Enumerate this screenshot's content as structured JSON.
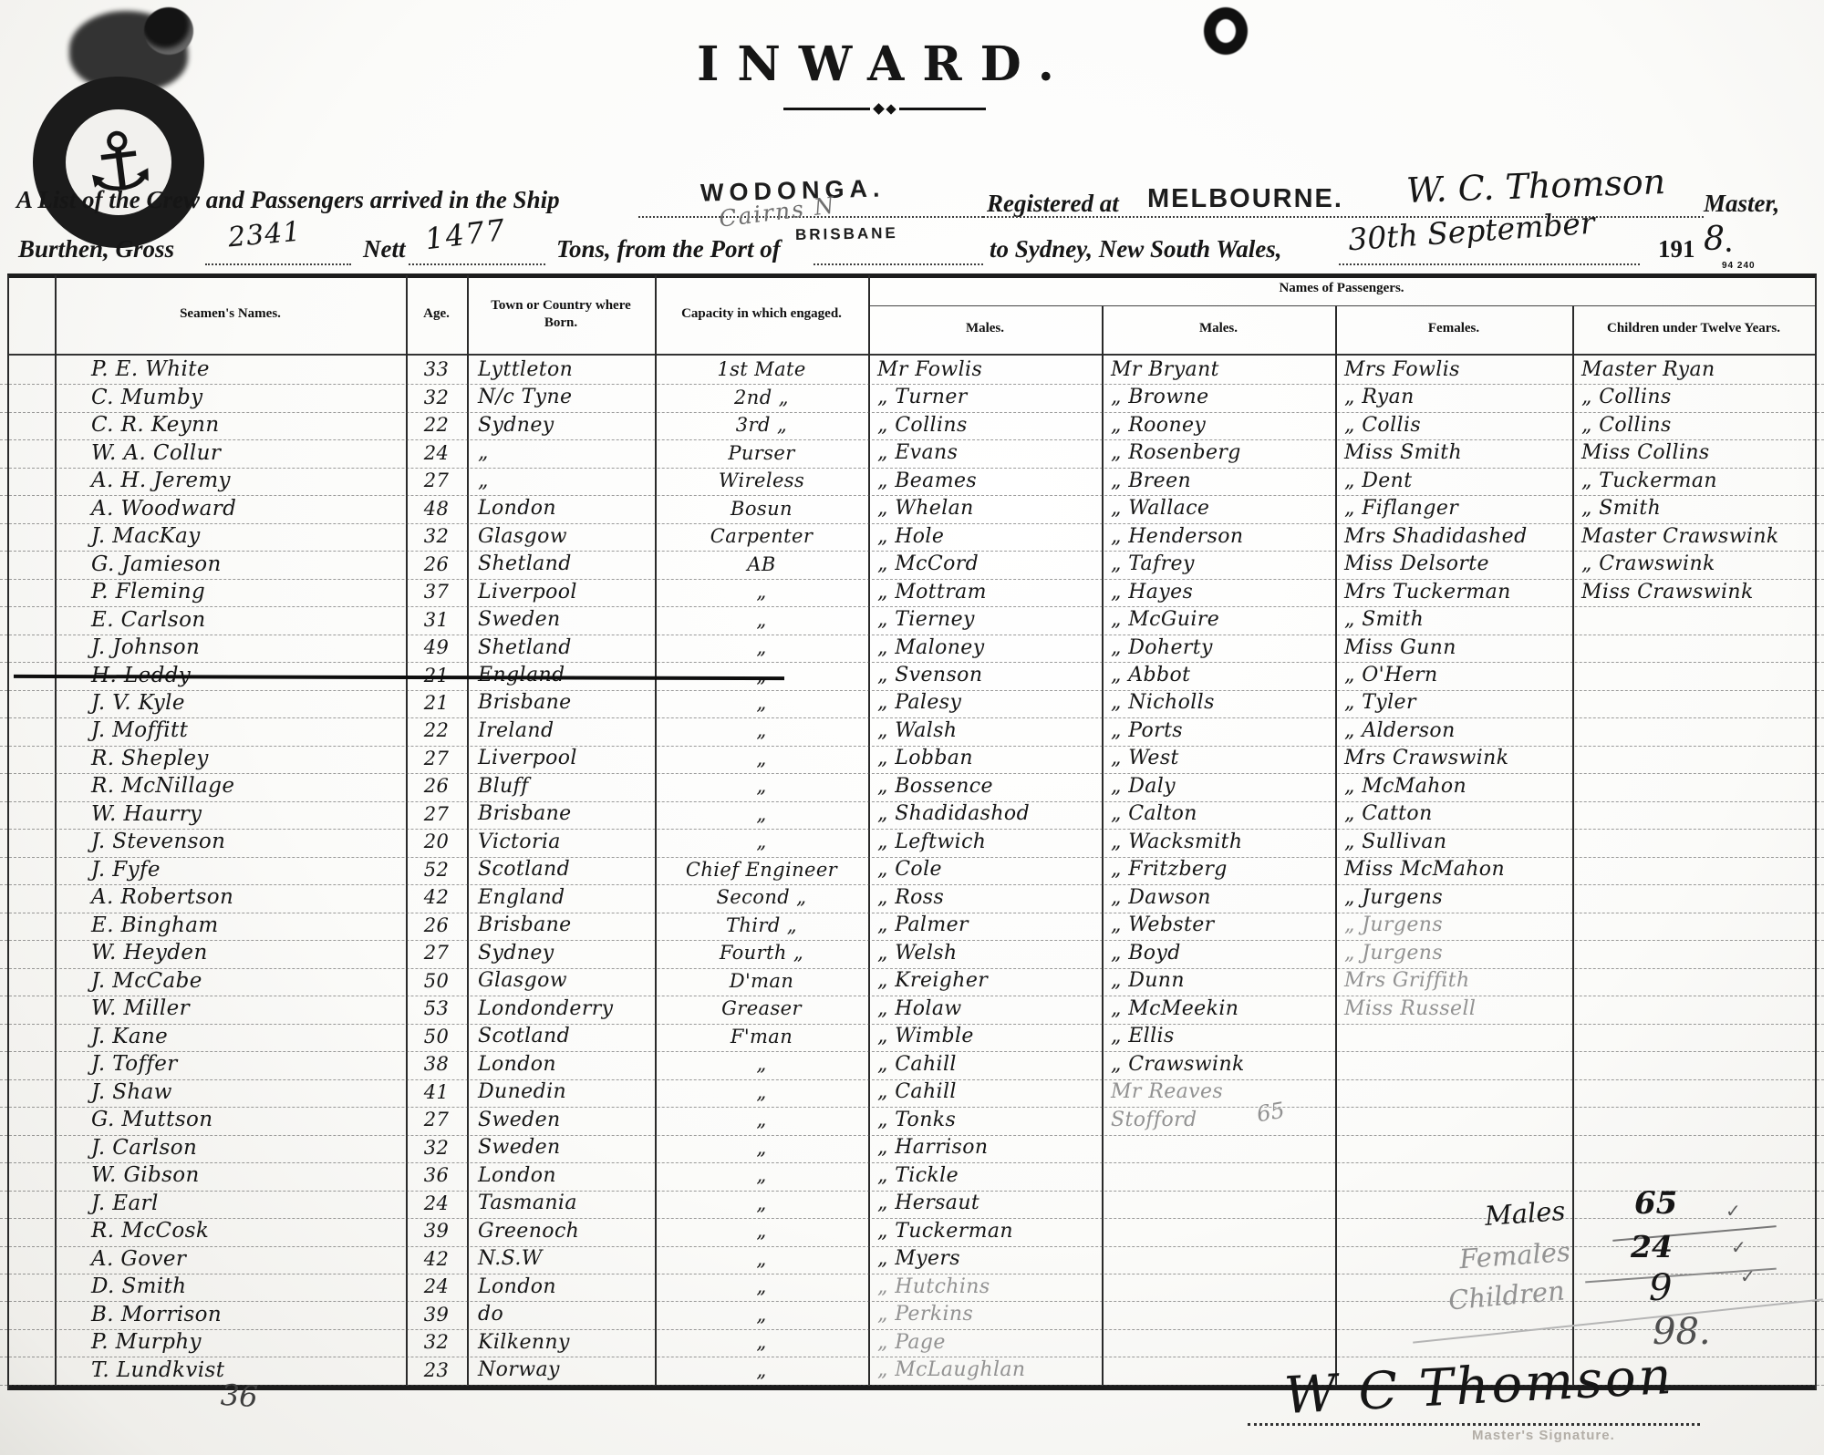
{
  "header": {
    "title": "INWARD.",
    "form_number": "94 240",
    "line1": {
      "pre": "A List of the Crew and Passengers arrived in the Ship",
      "ship_stamp": "WODONGA.",
      "ship_hw": "Cairns  N",
      "port_stamp": "BRISBANE",
      "registered_label": "Registered at",
      "registered_stamp": "MELBOURNE.",
      "master_hw": "W. C. Thomson",
      "master_label": "Master,"
    },
    "line2": {
      "burthen_label": "Burthen, Gross",
      "gross_hw": "2341",
      "nett_label": "Nett",
      "nett_hw": "1477",
      "tons_label": "Tons, from the Port of",
      "to_label": "to Sydney, New South Wales,",
      "date_hw": "30th September",
      "year_printed": "191",
      "year_hw": "8",
      "period": "."
    }
  },
  "table": {
    "headers": {
      "seamen": "Seamen's Names.",
      "age": "Age.",
      "town": "Town or Country where Born.",
      "capacity": "Capacity in which engaged.",
      "passengers": "Names of Passengers.",
      "males1": "Males.",
      "males2": "Males.",
      "females": "Females.",
      "children": "Children under Twelve Years."
    },
    "rows": [
      {
        "n": "P. E. White",
        "a": "33",
        "t": "Lyttleton",
        "cp": "1st Mate",
        "m1": "Mr Fowlis",
        "m2": "Mr Bryant",
        "f": "Mrs Fowlis",
        "c": "Master Ryan"
      },
      {
        "n": "C. Mumby",
        "a": "32",
        "t": "N/c Tyne",
        "cp": "2nd „",
        "m1": "„ Turner",
        "m2": "„ Browne",
        "f": "„ Ryan",
        "c": "„ Collins"
      },
      {
        "n": "C. R. Keynn",
        "a": "22",
        "t": "Sydney",
        "cp": "3rd „",
        "m1": "„ Collins",
        "m2": "„ Rooney",
        "f": "„ Collis",
        "c": "„ Collins"
      },
      {
        "n": "W. A. Collur",
        "a": "24",
        "t": "„",
        "cp": "Purser",
        "m1": "„ Evans",
        "m2": "„ Rosenberg",
        "f": "Miss Smith",
        "c": "Miss Collins"
      },
      {
        "n": "A. H. Jeremy",
        "a": "27",
        "t": "„",
        "cp": "Wireless",
        "m1": "„ Beames",
        "m2": "„ Breen",
        "f": "„ Dent",
        "c": "„ Tuckerman"
      },
      {
        "n": "A. Woodward",
        "a": "48",
        "t": "London",
        "cp": "Bosun",
        "m1": "„ Whelan",
        "m2": "„ Wallace",
        "f": "„ Fiflanger",
        "c": "„ Smith"
      },
      {
        "n": "J. MacKay",
        "a": "32",
        "t": "Glasgow",
        "cp": "Carpenter",
        "m1": "„ Hole",
        "m2": "„ Henderson",
        "f": "Mrs Shadidashed",
        "c": "Master Crawswink"
      },
      {
        "n": "G. Jamieson",
        "a": "26",
        "t": "Shetland",
        "cp": "AB",
        "m1": "„ McCord",
        "m2": "„ Tafrey",
        "f": "Miss Delsorte",
        "c": "„ Crawswink"
      },
      {
        "n": "P. Fleming",
        "a": "37",
        "t": "Liverpool",
        "cp": "„",
        "m1": "„ Mottram",
        "m2": "„ Hayes",
        "f": "Mrs Tuckerman",
        "c": "Miss Crawswink"
      },
      {
        "n": "E. Carlson",
        "a": "31",
        "t": "Sweden",
        "cp": "„",
        "m1": "„ Tierney",
        "m2": "„ McGuire",
        "f": "„ Smith",
        "c": ""
      },
      {
        "n": "J. Johnson",
        "a": "49",
        "t": "Shetland",
        "cp": "„",
        "m1": "„ Maloney",
        "m2": "„ Doherty",
        "f": "Miss Gunn",
        "c": ""
      },
      {
        "n": "H. Leddy",
        "a": "21",
        "t": "England",
        "cp": "„",
        "m1": "„ Svenson",
        "m2": "„ Abbot",
        "f": "„ O'Hern",
        "c": "",
        "struck": true
      },
      {
        "n": "J. V. Kyle",
        "a": "21",
        "t": "Brisbane",
        "cp": "„",
        "m1": "„ Palesy",
        "m2": "„ Nicholls",
        "f": "„ Tyler",
        "c": ""
      },
      {
        "n": "J. Moffitt",
        "a": "22",
        "t": "Ireland",
        "cp": "„",
        "m1": "„ Walsh",
        "m2": "„ Ports",
        "f": "„ Alderson",
        "c": ""
      },
      {
        "n": "R. Shepley",
        "a": "27",
        "t": "Liverpool",
        "cp": "„",
        "m1": "„ Lobban",
        "m2": "„ West",
        "f": "Mrs Crawswink",
        "c": ""
      },
      {
        "n": "R. McNillage",
        "a": "26",
        "t": "Bluff",
        "cp": "„",
        "m1": "„ Bossence",
        "m2": "„ Daly",
        "f": "„ McMahon",
        "c": ""
      },
      {
        "n": "W. Haurry",
        "a": "27",
        "t": "Brisbane",
        "cp": "„",
        "m1": "„ Shadidashod",
        "m2": "„ Calton",
        "f": "„ Catton",
        "c": ""
      },
      {
        "n": "J. Stevenson",
        "a": "20",
        "t": "Victoria",
        "cp": "„",
        "m1": "„ Leftwich",
        "m2": "„ Wacksmith",
        "f": "„ Sullivan",
        "c": ""
      },
      {
        "n": "J. Fyfe",
        "a": "52",
        "t": "Scotland",
        "cp": "Chief Engineer",
        "m1": "„ Cole",
        "m2": "„ Fritzberg",
        "f": "Miss McMahon",
        "c": ""
      },
      {
        "n": "A. Robertson",
        "a": "42",
        "t": "England",
        "cp": "Second „",
        "m1": "„ Ross",
        "m2": "„ Dawson",
        "f": "„ Jurgens",
        "c": ""
      },
      {
        "n": "E. Bingham",
        "a": "26",
        "t": "Brisbane",
        "cp": "Third „",
        "m1": "„ Palmer",
        "m2": "„ Webster",
        "f": {
          "t": "„ Jurgens",
          "p": true
        },
        "c": ""
      },
      {
        "n": "W. Heyden",
        "a": "27",
        "t": "Sydney",
        "cp": "Fourth „",
        "m1": "„ Welsh",
        "m2": "„ Boyd",
        "f": {
          "t": "„ Jurgens",
          "p": true
        },
        "c": ""
      },
      {
        "n": "J. McCabe",
        "a": "50",
        "t": "Glasgow",
        "cp": "D'man",
        "m1": "„ Kreigher",
        "m2": "„ Dunn",
        "f": {
          "t": "Mrs Griffith",
          "p": true
        },
        "c": ""
      },
      {
        "n": "W. Miller",
        "a": "53",
        "t": "Londonderry",
        "cp": "Greaser",
        "m1": "„ Holaw",
        "m2": "„ McMeekin",
        "f": {
          "t": "Miss Russell",
          "p": true
        },
        "c": ""
      },
      {
        "n": "J. Kane",
        "a": "50",
        "t": "Scotland",
        "cp": "F'man",
        "m1": "„ Wimble",
        "m2": "„ Ellis",
        "f": "",
        "c": ""
      },
      {
        "n": "J. Toffer",
        "a": "38",
        "t": "London",
        "cp": "„",
        "m1": "„ Cahill",
        "m2": "„ Crawswink",
        "f": "",
        "c": ""
      },
      {
        "n": "J. Shaw",
        "a": "41",
        "t": "Dunedin",
        "cp": "„",
        "m1": "„ Cahill",
        "m2": {
          "t": "Mr Reaves",
          "p": true
        },
        "f": "",
        "c": ""
      },
      {
        "n": "G. Muttson",
        "a": "27",
        "t": "Sweden",
        "cp": "„",
        "m1": "„ Tonks",
        "m2": {
          "t": "Stofford",
          "p": true
        },
        "f": "",
        "c": ""
      },
      {
        "n": "J. Carlson",
        "a": "32",
        "t": "Sweden",
        "cp": "„",
        "m1": "„ Harrison",
        "m2": "",
        "f": "",
        "c": ""
      },
      {
        "n": "W. Gibson",
        "a": "36",
        "t": "London",
        "cp": "„",
        "m1": "„ Tickle",
        "m2": "",
        "f": "",
        "c": ""
      },
      {
        "n": "J. Earl",
        "a": "24",
        "t": "Tasmania",
        "cp": "„",
        "m1": "„ Hersaut",
        "m2": "",
        "f": "",
        "c": ""
      },
      {
        "n": "R. McCosk",
        "a": "39",
        "t": "Greenoch",
        "cp": "„",
        "m1": "„ Tuckerman",
        "m2": "",
        "f": "",
        "c": ""
      },
      {
        "n": "A. Gover",
        "a": "42",
        "t": "N.S.W",
        "cp": "„",
        "m1": "„ Myers",
        "m2": "",
        "f": "",
        "c": ""
      },
      {
        "n": "D. Smith",
        "a": "24",
        "t": "London",
        "cp": "„",
        "m1": {
          "t": "„ Hutchins",
          "p": true
        },
        "m2": "",
        "f": "",
        "c": ""
      },
      {
        "n": "B. Morrison",
        "a": "39",
        "t": "do",
        "cp": "„",
        "m1": {
          "t": "„ Perkins",
          "p": true
        },
        "m2": "",
        "f": "",
        "c": ""
      },
      {
        "n": "P. Murphy",
        "a": "32",
        "t": "Kilkenny",
        "cp": "„",
        "m1": {
          "t": "„ Page",
          "p": true
        },
        "m2": "",
        "f": "",
        "c": ""
      },
      {
        "n": "T. Lundkvist",
        "a": "23",
        "t": "Norway",
        "cp": "„",
        "m1": {
          "t": "„ McLaughlan",
          "p": true
        },
        "m2": "",
        "f": "",
        "c": ""
      }
    ]
  },
  "totals": {
    "males_label": "Males",
    "males_value": "65",
    "females_label": "Females",
    "females_value": "24",
    "children_label": "Children",
    "children_value": "9",
    "total_value": "98.",
    "check": "✓"
  },
  "annotations": {
    "pencil_65": "65",
    "bottom_left_number": "36"
  },
  "signature": {
    "name": "W C Thomson",
    "caption": "Master's Signature."
  }
}
